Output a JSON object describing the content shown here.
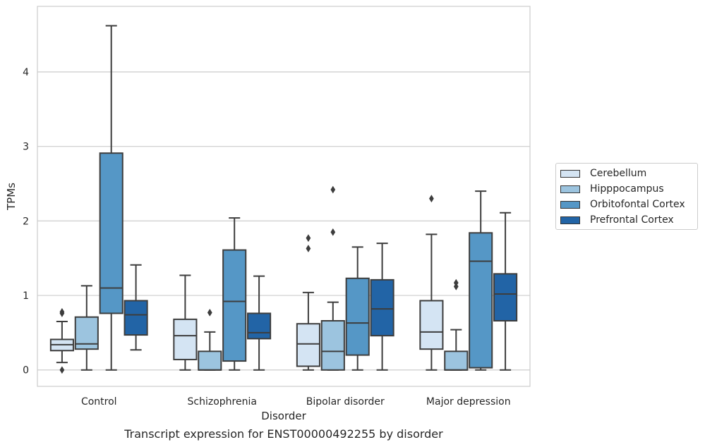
{
  "chart_data": {
    "type": "box",
    "title": "Transcript expression for ENST00000492255 by disorder",
    "xlabel": "Disorder",
    "ylabel": "TPMs",
    "ylim": [
      -0.22,
      4.88
    ],
    "yticks": [
      0,
      1,
      2,
      3,
      4
    ],
    "grid": true,
    "legend_position": "right",
    "categories": [
      "Control",
      "Schizophrenia",
      "Bipolar disorder",
      "Major depression"
    ],
    "series": [
      {
        "name": "Cerebellum",
        "color": "#d4e4f3",
        "boxes": [
          {
            "whislo": 0.1,
            "q1": 0.26,
            "med": 0.34,
            "q3": 0.41,
            "whishi": 0.65,
            "fliers": [
              0.0,
              0.76,
              0.78
            ]
          },
          {
            "whislo": 0.0,
            "q1": 0.14,
            "med": 0.46,
            "q3": 0.68,
            "whishi": 1.27,
            "fliers": []
          },
          {
            "whislo": 0.0,
            "q1": 0.05,
            "med": 0.35,
            "q3": 0.62,
            "whishi": 1.04,
            "fliers": [
              1.63,
              1.77
            ]
          },
          {
            "whislo": 0.0,
            "q1": 0.28,
            "med": 0.51,
            "q3": 0.93,
            "whishi": 1.82,
            "fliers": [
              2.3
            ]
          }
        ]
      },
      {
        "name": "Hipppocampus",
        "color": "#9cc4df",
        "boxes": [
          {
            "whislo": 0.0,
            "q1": 0.28,
            "med": 0.35,
            "q3": 0.71,
            "whishi": 1.13,
            "fliers": []
          },
          {
            "whislo": 0.0,
            "q1": 0.0,
            "med": 0.0,
            "q3": 0.25,
            "whishi": 0.51,
            "fliers": [
              0.77
            ]
          },
          {
            "whislo": 0.0,
            "q1": 0.0,
            "med": 0.25,
            "q3": 0.66,
            "whishi": 0.91,
            "fliers": [
              1.85,
              2.42
            ]
          },
          {
            "whislo": 0.0,
            "q1": 0.0,
            "med": 0.0,
            "q3": 0.25,
            "whishi": 0.54,
            "fliers": [
              1.12,
              1.17
            ]
          }
        ]
      },
      {
        "name": "Orbitofontal Cortex",
        "color": "#5597c6",
        "boxes": [
          {
            "whislo": 0.0,
            "q1": 0.76,
            "med": 1.1,
            "q3": 2.91,
            "whishi": 4.62,
            "fliers": []
          },
          {
            "whislo": 0.0,
            "q1": 0.12,
            "med": 0.92,
            "q3": 1.61,
            "whishi": 2.04,
            "fliers": []
          },
          {
            "whislo": 0.0,
            "q1": 0.2,
            "med": 0.63,
            "q3": 1.23,
            "whishi": 1.65,
            "fliers": []
          },
          {
            "whislo": 0.0,
            "q1": 0.03,
            "med": 1.46,
            "q3": 1.84,
            "whishi": 2.4,
            "fliers": []
          }
        ]
      },
      {
        "name": "Prefrontal Cortex",
        "color": "#2264a6",
        "boxes": [
          {
            "whislo": 0.27,
            "q1": 0.47,
            "med": 0.74,
            "q3": 0.93,
            "whishi": 1.41,
            "fliers": []
          },
          {
            "whislo": 0.0,
            "q1": 0.42,
            "med": 0.5,
            "q3": 0.76,
            "whishi": 1.26,
            "fliers": []
          },
          {
            "whislo": 0.0,
            "q1": 0.46,
            "med": 0.82,
            "q3": 1.21,
            "whishi": 1.7,
            "fliers": []
          },
          {
            "whislo": 0.0,
            "q1": 0.66,
            "med": 1.02,
            "q3": 1.29,
            "whishi": 2.11,
            "fliers": []
          }
        ]
      }
    ]
  }
}
